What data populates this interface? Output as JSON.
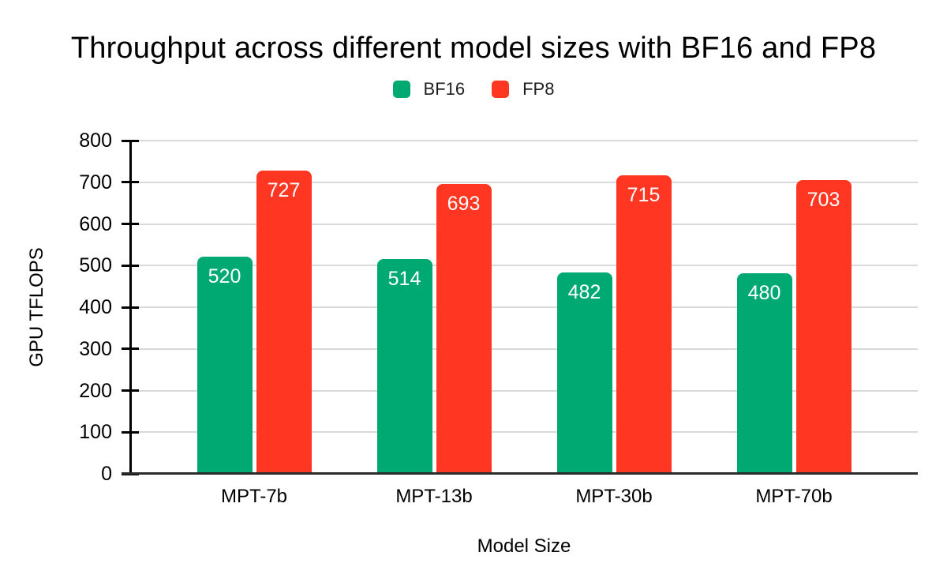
{
  "chart_data": {
    "type": "bar",
    "title": "Throughput across different model sizes with BF16 and FP8",
    "categories": [
      "MPT-7b",
      "MPT-13b",
      "MPT-30b",
      "MPT-70b"
    ],
    "series": [
      {
        "name": "BF16",
        "color": "#00A972",
        "values": [
          520,
          514,
          482,
          480
        ]
      },
      {
        "name": "FP8",
        "color": "#FF3621",
        "values": [
          727,
          693,
          715,
          703
        ]
      }
    ],
    "xlabel": "Model Size",
    "ylabel": "GPU TFLOPS",
    "ylim": [
      0,
      800
    ],
    "ytick_step": 100,
    "grid": true,
    "grid_color": "#d9d9d9",
    "axis_color": "#000000",
    "legend_position": "top",
    "bar_labels": true,
    "bar_label_color": "#ffffff"
  }
}
